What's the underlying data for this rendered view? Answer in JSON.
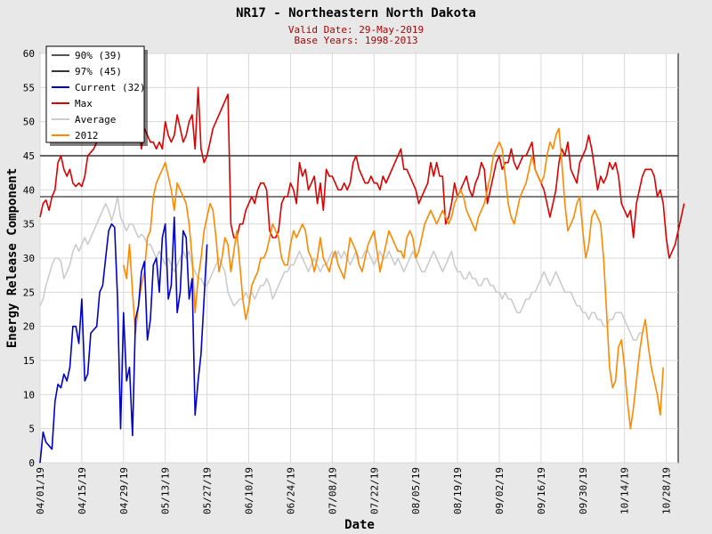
{
  "chart_data": {
    "type": "line",
    "title": "NR17 - Northeastern North Dakota",
    "subtitle_valid": "Valid Date: 29-May-2019",
    "subtitle_base": "Base Years: 1998-2013",
    "xlabel": "Date",
    "ylabel": "Energy Release Component",
    "ylim": [
      0,
      60
    ],
    "yticks": [
      0,
      5,
      10,
      15,
      20,
      25,
      30,
      35,
      40,
      45,
      50,
      55,
      60
    ],
    "x_start": "04/01",
    "x_end": "11/01",
    "xticks": [
      {
        "label": "04/01/19",
        "day": 0
      },
      {
        "label": "04/15/19",
        "day": 14
      },
      {
        "label": "04/29/19",
        "day": 28
      },
      {
        "label": "05/13/19",
        "day": 42
      },
      {
        "label": "05/27/19",
        "day": 56
      },
      {
        "label": "06/10/19",
        "day": 70
      },
      {
        "label": "06/24/19",
        "day": 84
      },
      {
        "label": "07/08/19",
        "day": 98
      },
      {
        "label": "07/22/19",
        "day": 112
      },
      {
        "label": "08/05/19",
        "day": 126
      },
      {
        "label": "08/19/19",
        "day": 140
      },
      {
        "label": "09/02/19",
        "day": 154
      },
      {
        "label": "09/16/19",
        "day": 168
      },
      {
        "label": "09/30/19",
        "day": 182
      },
      {
        "label": "10/14/19",
        "day": 196
      },
      {
        "label": "10/28/19",
        "day": 210
      }
    ],
    "grid": true,
    "legend_position": "top-left",
    "series": [
      {
        "name": "90% (39)",
        "kind": "hline",
        "y": 39,
        "color": "#555555"
      },
      {
        "name": "97% (45)",
        "kind": "hline",
        "y": 45,
        "color": "#333333"
      },
      {
        "name": "Current (32)",
        "color": "#0000cc",
        "x0": 0,
        "values": [
          0,
          4.5,
          3,
          2.5,
          2,
          9,
          11.5,
          11,
          13,
          12,
          14,
          20,
          20,
          17.5,
          24,
          12,
          13,
          19,
          19.5,
          20,
          25,
          26,
          30,
          34,
          35,
          34.5,
          24,
          5,
          22,
          12,
          14,
          4,
          21,
          23,
          28,
          29.5,
          18,
          21,
          29,
          30,
          25,
          33,
          35,
          24,
          26,
          36,
          22,
          25,
          34,
          33,
          24,
          27,
          7,
          12,
          16,
          24,
          32
        ]
      },
      {
        "name": "Max",
        "color": "#dd0000",
        "x0": 0,
        "values": [
          36,
          38,
          38.5,
          37,
          39,
          40,
          44,
          45,
          43,
          42,
          43,
          41,
          40.5,
          41,
          40.5,
          42,
          45,
          45.5,
          46,
          47,
          55,
          56,
          58,
          58,
          58,
          58,
          59,
          60,
          59,
          57,
          55,
          56.5,
          52,
          50,
          46,
          49,
          48,
          47,
          47,
          46,
          47,
          46,
          50,
          48,
          47,
          48,
          51,
          49,
          47,
          48,
          50,
          51,
          46,
          55,
          46,
          44,
          45,
          47,
          49,
          50,
          51,
          52,
          53,
          54,
          35,
          33,
          33,
          35,
          35,
          37,
          38,
          39,
          38,
          40,
          41,
          41,
          40,
          34,
          33,
          33,
          34,
          38,
          39,
          39,
          41,
          40,
          38,
          44,
          42,
          43,
          40,
          41,
          42,
          38,
          41,
          37,
          43,
          42,
          42,
          41,
          40,
          40,
          41,
          40,
          41,
          44,
          45,
          43,
          42,
          41,
          41,
          42,
          41,
          41,
          40,
          42,
          41,
          42,
          43,
          44,
          45,
          46,
          43,
          43,
          42,
          41,
          40,
          38,
          39,
          40,
          41,
          44,
          42,
          44,
          42,
          42,
          35,
          36,
          38,
          41,
          39,
          40,
          41,
          42,
          40,
          39,
          41,
          42,
          44,
          43,
          38,
          40,
          42,
          44,
          45,
          43,
          44,
          44,
          46,
          44,
          43,
          44,
          45,
          45,
          46,
          47,
          43,
          42,
          41,
          40,
          38,
          36,
          38,
          40,
          44,
          46,
          45,
          47,
          43,
          42,
          41,
          44,
          45,
          46,
          48,
          46,
          43,
          40,
          42,
          41,
          42,
          44,
          43,
          44,
          42,
          38,
          37,
          36,
          37,
          33,
          38,
          40,
          42,
          43,
          43,
          43,
          42,
          39,
          40,
          38,
          33,
          30,
          31,
          32,
          34,
          36,
          38
        ]
      },
      {
        "name": "Average",
        "color": "#cccccc",
        "x0": 0,
        "values": [
          23,
          24,
          26,
          27.5,
          29,
          30,
          30,
          29.5,
          27,
          28,
          29,
          31,
          32,
          31,
          32,
          33,
          32,
          33,
          34,
          35,
          36,
          37,
          38,
          37,
          35.5,
          37,
          39,
          36,
          35,
          34,
          35,
          35,
          34,
          33,
          33.5,
          33,
          32,
          32,
          31,
          30,
          31,
          30,
          29,
          30,
          29,
          28,
          29,
          30,
          31,
          30,
          31,
          29,
          28,
          27,
          27,
          26,
          26,
          27,
          28,
          29,
          30,
          29,
          28,
          25,
          24,
          23,
          23.5,
          24,
          24,
          25,
          24,
          25,
          24,
          25,
          26,
          26,
          27,
          26,
          24,
          25,
          26,
          27,
          28,
          28,
          29,
          29,
          30,
          31,
          30,
          29,
          28,
          29,
          30,
          29,
          28,
          29,
          29,
          30,
          31,
          30,
          31,
          30,
          31,
          30,
          29,
          30,
          31,
          30,
          30,
          31,
          31,
          30,
          29,
          30,
          31,
          30,
          30,
          31,
          30,
          29,
          30,
          29,
          28,
          29,
          30,
          31,
          30,
          29,
          28,
          28,
          29,
          30,
          31,
          30,
          29,
          28,
          29,
          30,
          31,
          29,
          28,
          28,
          27,
          27,
          28,
          27,
          27,
          26,
          26,
          27,
          27,
          26,
          26,
          25,
          25,
          24,
          25,
          24,
          24,
          23,
          22,
          22,
          23,
          24,
          24,
          25,
          25,
          26,
          27,
          28,
          27,
          26,
          27,
          28,
          27,
          26,
          25,
          25,
          25,
          24,
          23,
          23,
          22,
          22,
          21,
          22,
          22,
          21,
          21,
          20,
          20,
          21,
          21,
          22,
          22,
          22,
          21,
          20,
          19,
          18,
          18,
          19,
          19
        ]
      },
      {
        "name": "2012",
        "color": "#ff8800",
        "x0": 28,
        "values": [
          29,
          27,
          32,
          25,
          19,
          23,
          26,
          28,
          33,
          34,
          39,
          41,
          42,
          43,
          44,
          42,
          40,
          37,
          41,
          40,
          39,
          38,
          35,
          30,
          22,
          27,
          30,
          34,
          36,
          38,
          37,
          33,
          28,
          30,
          33,
          32,
          28,
          31,
          34,
          29,
          24,
          21,
          23,
          26,
          27,
          28,
          30,
          30,
          31,
          33,
          35,
          34,
          33,
          30,
          29,
          29,
          32,
          34,
          33,
          34,
          35,
          34,
          31,
          30,
          28,
          30,
          33,
          30,
          29,
          28,
          30,
          31,
          29,
          28,
          27,
          30,
          33,
          32,
          31,
          29,
          28,
          30,
          32,
          33,
          34,
          31,
          28,
          30,
          32,
          34,
          33,
          32,
          31,
          31,
          30,
          33,
          34,
          33,
          30,
          31,
          33,
          35,
          36,
          37,
          36,
          35,
          36,
          37,
          36,
          35,
          36,
          38,
          39,
          40,
          39,
          37,
          36,
          35,
          34,
          36,
          37,
          38,
          40,
          42,
          45,
          46,
          47,
          46,
          42,
          38,
          36,
          35,
          37,
          39,
          40,
          41,
          43,
          45,
          43,
          42,
          41,
          42,
          45,
          47,
          46,
          48,
          49,
          44,
          38,
          34,
          35,
          36,
          38,
          39,
          34,
          30,
          32,
          36,
          37,
          36,
          35,
          30,
          22,
          14,
          11,
          12,
          17,
          18,
          14,
          9,
          5,
          8,
          12,
          16,
          19,
          21,
          17,
          14,
          12,
          10,
          7,
          14
        ]
      }
    ]
  }
}
